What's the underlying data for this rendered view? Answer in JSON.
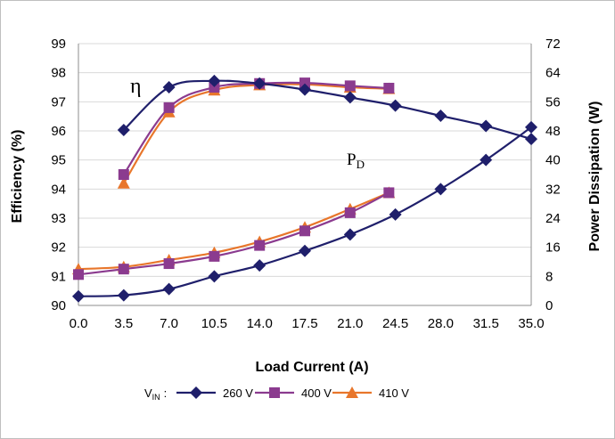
{
  "chart_data": {
    "type": "line",
    "xlabel": "Load Current (A)",
    "ylabel": "Efficiency (%)",
    "y2label": "Power Dissipation (W)",
    "x_ticks": [
      "0.0",
      "3.5",
      "7.0",
      "10.5",
      "14.0",
      "17.5",
      "21.0",
      "24.5",
      "28.0",
      "31.5",
      "35.0"
    ],
    "y_ticks": [
      "90",
      "91",
      "92",
      "93",
      "94",
      "95",
      "96",
      "97",
      "98",
      "99"
    ],
    "y2_ticks": [
      "0",
      "8",
      "16",
      "24",
      "32",
      "40",
      "48",
      "56",
      "64",
      "72"
    ],
    "xlim": [
      0,
      35
    ],
    "ylim": [
      90,
      99
    ],
    "y2lim": [
      0,
      72
    ],
    "grid": true,
    "legend_placement": "bottom",
    "legend_prefix": "V",
    "legend_prefix_sub": "IN",
    "legend_suffix": ":",
    "annotations": {
      "efficiency": "η",
      "power": "P",
      "power_sub": "D"
    },
    "series": [
      {
        "name": "260 V",
        "color": "#1f1f6b",
        "marker": "diamond",
        "efficiency": [
          [
            3.5,
            96.03
          ],
          [
            7.0,
            97.5
          ],
          [
            10.5,
            97.72
          ],
          [
            14.0,
            97.63
          ],
          [
            17.5,
            97.42
          ],
          [
            21.0,
            97.15
          ],
          [
            24.5,
            96.87
          ],
          [
            28.0,
            96.52
          ],
          [
            31.5,
            96.17
          ],
          [
            35.0,
            95.72
          ]
        ],
        "power": [
          [
            0,
            2.5
          ],
          [
            3.5,
            2.8
          ],
          [
            7.0,
            4.5
          ],
          [
            10.5,
            8.0
          ],
          [
            14.0,
            11.0
          ],
          [
            17.5,
            15.0
          ],
          [
            21.0,
            19.5
          ],
          [
            24.5,
            25.0
          ],
          [
            28.0,
            32.0
          ],
          [
            31.5,
            40.0
          ],
          [
            35.0,
            49.0
          ]
        ]
      },
      {
        "name": "400 V",
        "color": "#8b3b8f",
        "marker": "square",
        "efficiency": [
          [
            3.5,
            94.5
          ],
          [
            7.0,
            96.8
          ],
          [
            10.5,
            97.5
          ],
          [
            14.0,
            97.63
          ],
          [
            17.5,
            97.65
          ],
          [
            21.0,
            97.55
          ],
          [
            24.0,
            97.47
          ]
        ],
        "power": [
          [
            0,
            8.5
          ],
          [
            3.5,
            10.0
          ],
          [
            7.0,
            11.5
          ],
          [
            10.5,
            13.5
          ],
          [
            14.0,
            16.5
          ],
          [
            17.5,
            20.5
          ],
          [
            21.0,
            25.5
          ],
          [
            24.0,
            31.0
          ]
        ]
      },
      {
        "name": "410 V",
        "color": "#e8762b",
        "marker": "triangle",
        "efficiency": [
          [
            3.5,
            94.2
          ],
          [
            7.0,
            96.65
          ],
          [
            10.5,
            97.4
          ],
          [
            14.0,
            97.58
          ],
          [
            17.5,
            97.6
          ],
          [
            21.0,
            97.5
          ],
          [
            24.0,
            97.45
          ]
        ],
        "power": [
          [
            0,
            10.0
          ],
          [
            3.5,
            10.6
          ],
          [
            7.0,
            12.5
          ],
          [
            10.5,
            14.5
          ],
          [
            14.0,
            17.5
          ],
          [
            17.5,
            21.5
          ],
          [
            21.0,
            26.5
          ],
          [
            24.0,
            31.0
          ]
        ]
      }
    ]
  }
}
